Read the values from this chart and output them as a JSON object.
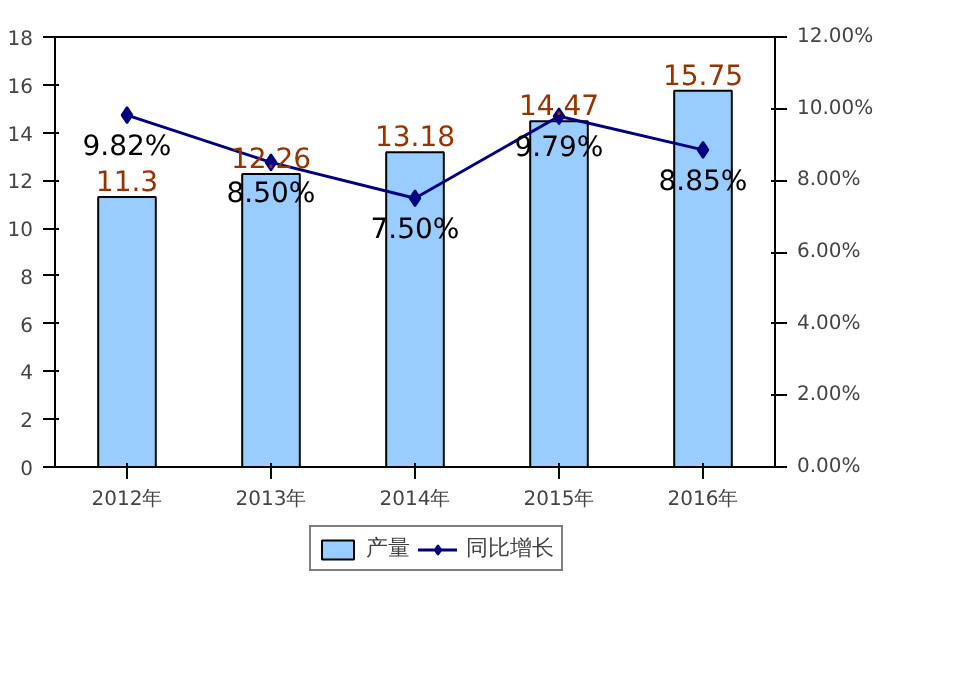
{
  "chart_data": {
    "type": "bar",
    "categories": [
      "2012年",
      "2013年",
      "2014年",
      "2015年",
      "2016年"
    ],
    "series": [
      {
        "name": "产量",
        "color": "#99ccff",
        "values": [
          11.3,
          12.26,
          13.18,
          14.47,
          15.75
        ],
        "value_labels": [
          "11.3",
          "12.26",
          "13.18",
          "14.47",
          "15.75"
        ]
      },
      {
        "name": "同比增长",
        "type": "line",
        "axis": "y2",
        "color": "#000080",
        "values": [
          9.82,
          8.5,
          7.5,
          9.79,
          8.85
        ],
        "value_labels": [
          "9.82%",
          "8.50%",
          "7.50%",
          "9.79%",
          "8.85%"
        ]
      }
    ],
    "ylim": [
      0,
      18
    ],
    "yticks": [
      0,
      2,
      4,
      6,
      8,
      10,
      12,
      14,
      16,
      18
    ],
    "y2lim": [
      0,
      12
    ],
    "y2ticks": [
      {
        "value": 0,
        "label": "0.00%"
      },
      {
        "value": 2,
        "label": "2.00%"
      },
      {
        "value": 4,
        "label": "4.00%"
      },
      {
        "value": 6,
        "label": "6.00%"
      },
      {
        "value": 8,
        "label": "8.00%"
      },
      {
        "value": 10,
        "label": "10.00%"
      },
      {
        "value": 12,
        "label": "12.00%"
      }
    ],
    "legend": "bottom",
    "marker": "diamond",
    "grid": false
  }
}
